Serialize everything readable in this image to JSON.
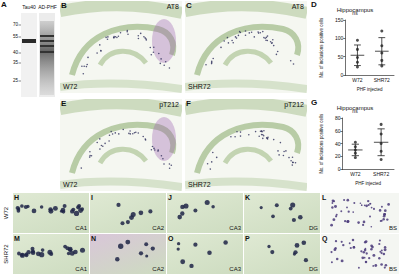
{
  "figure": {
    "blot": {
      "letter": "A",
      "lanes": [
        "Tau40",
        "AD-PHF"
      ],
      "markers": [
        70,
        55,
        40,
        35,
        25
      ]
    },
    "hippocampus": [
      {
        "letter": "B",
        "stain": "AT8",
        "group": "W72"
      },
      {
        "letter": "C",
        "stain": "AT8",
        "group": "SHR72"
      },
      {
        "letter": "E",
        "stain": "pT212",
        "group": "W72"
      },
      {
        "letter": "F",
        "stain": "pT212",
        "group": "SHR72"
      }
    ],
    "chart_letters": [
      "D",
      "G"
    ],
    "rows": [
      {
        "label": "W72",
        "panels": [
          {
            "letter": "H",
            "region": "CA1"
          },
          {
            "letter": "I",
            "region": "CA2"
          },
          {
            "letter": "J",
            "region": "CA3"
          },
          {
            "letter": "K",
            "region": "DG"
          },
          {
            "letter": "L",
            "region": "BS"
          }
        ]
      },
      {
        "label": "SHR72",
        "panels": [
          {
            "letter": "M",
            "region": "CA1"
          },
          {
            "letter": "N",
            "region": "CA2"
          },
          {
            "letter": "O",
            "region": "CA3"
          },
          {
            "letter": "P",
            "region": "DG"
          },
          {
            "letter": "Q",
            "region": "BS"
          }
        ]
      }
    ]
  },
  "chart_data": [
    {
      "type": "scatter",
      "title": "Hippocampus",
      "xlabel": "PHF injected",
      "ylabel": "No. of inclusions positive cells",
      "categories": [
        "W72",
        "SHR72"
      ],
      "values": [
        [
          22,
          35,
          48,
          70,
          95
        ],
        [
          25,
          40,
          60,
          80,
          120
        ]
      ],
      "mean": [
        54,
        65
      ],
      "error": [
        28,
        37
      ],
      "annotation": "ns",
      "color": "#222222",
      "ylim": [
        0,
        150
      ],
      "yticks": [
        0,
        50,
        100,
        150
      ],
      "grid": false
    },
    {
      "type": "scatter",
      "title": "Hippocampus",
      "xlabel": "PHF injected",
      "ylabel": "No. of inclusions positive cells",
      "categories": [
        "W72",
        "SHR72"
      ],
      "values": [
        [
          18,
          25,
          30,
          35,
          42
        ],
        [
          15,
          28,
          40,
          55,
          70
        ]
      ],
      "mean": [
        30,
        42
      ],
      "error": [
        9,
        21
      ],
      "annotation": "ns",
      "color": "#222222",
      "ylim": [
        0,
        80
      ],
      "yticks": [
        0,
        20,
        40,
        60,
        80
      ],
      "grid": false
    }
  ]
}
